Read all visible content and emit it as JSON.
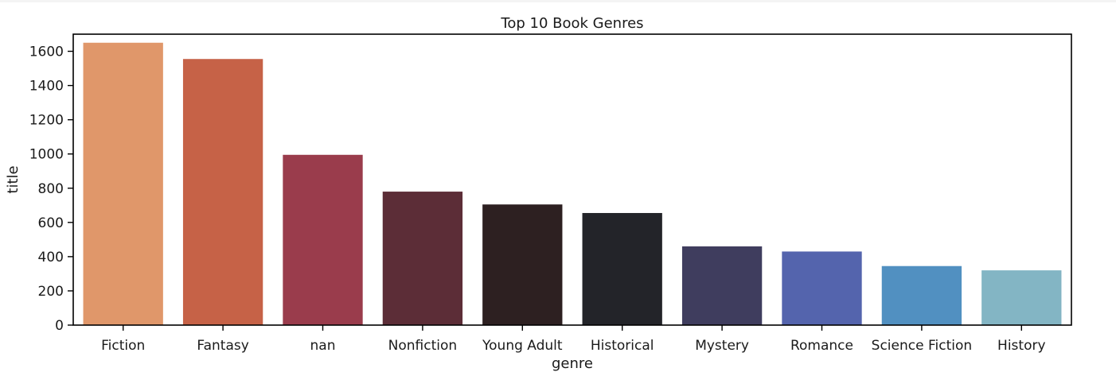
{
  "chart_data": {
    "type": "bar",
    "title": "Top 10 Book Genres",
    "xlabel": "genre",
    "ylabel": "title",
    "categories": [
      "Fiction",
      "Fantasy",
      "nan",
      "Nonfiction",
      "Young Adult",
      "Historical",
      "Mystery",
      "Romance",
      "Science Fiction",
      "History"
    ],
    "values": [
      1650,
      1555,
      995,
      780,
      705,
      655,
      460,
      430,
      345,
      320
    ],
    "colors": [
      "#e0976a",
      "#c66247",
      "#9a3c4c",
      "#5c2d37",
      "#2d2021",
      "#232429",
      "#3f3d5e",
      "#5464ad",
      "#5190c1",
      "#83b5c4"
    ],
    "ylim": [
      0,
      1700
    ],
    "yticks": [
      0,
      200,
      400,
      600,
      800,
      1000,
      1200,
      1400,
      1600
    ],
    "grid": false,
    "legend": "none"
  }
}
